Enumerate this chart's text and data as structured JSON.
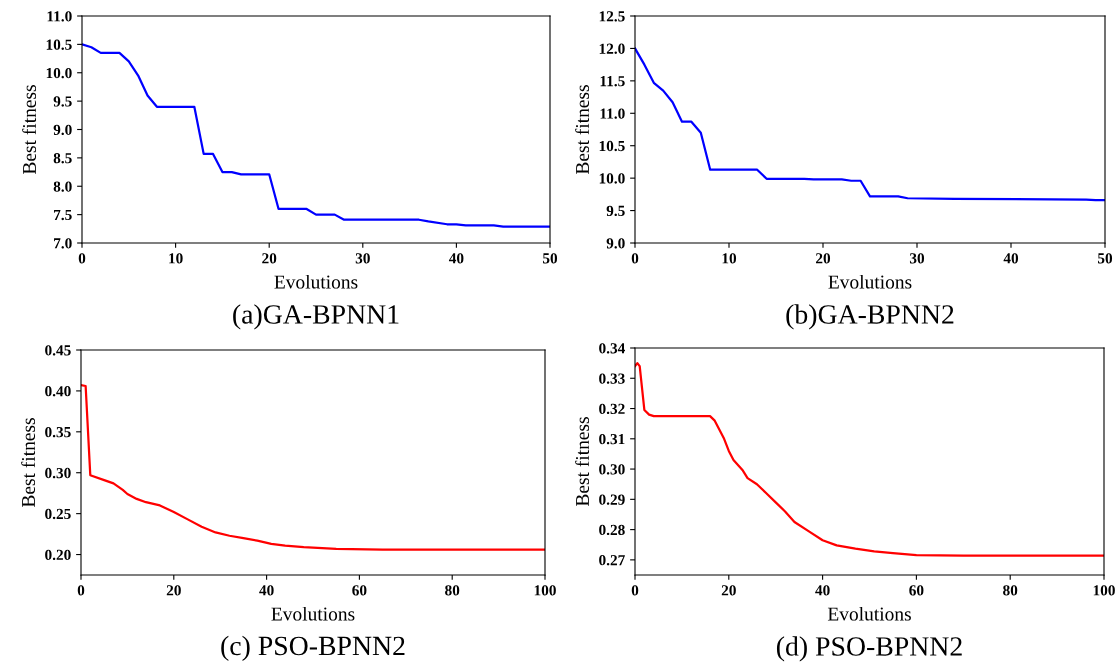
{
  "chart_data": [
    {
      "type": "line",
      "title": "(a)GA-BPNN1",
      "xlabel": "Evolutions",
      "ylabel": "Best fitness",
      "xlim": [
        0,
        50
      ],
      "xticks": [
        0,
        10,
        20,
        30,
        40,
        50
      ],
      "ylim": [
        7.0,
        11.0
      ],
      "yticks": [
        {
          "value": 7.0,
          "label": "7.0"
        },
        7.5,
        {
          "value": 8.0,
          "label": "8.0"
        },
        8.5,
        {
          "value": 9.0,
          "label": "9.0"
        },
        9.5,
        {
          "value": 10.0,
          "label": "10.0"
        },
        10.5,
        {
          "value": 11.0,
          "label": "11.0"
        }
      ],
      "series": [
        {
          "color": "#0000ff",
          "x": [
            0,
            1,
            2,
            4,
            5,
            6,
            7,
            8,
            12,
            13,
            14,
            15,
            16,
            17,
            20,
            21,
            24,
            25,
            27,
            28,
            36,
            37,
            39,
            40,
            41,
            44,
            45,
            50
          ],
          "values": [
            10.5,
            10.45,
            10.35,
            10.35,
            10.2,
            9.95,
            9.6,
            9.4,
            9.4,
            8.57,
            8.57,
            8.25,
            8.25,
            8.21,
            8.21,
            7.6,
            7.6,
            7.5,
            7.5,
            7.41,
            7.41,
            7.38,
            7.33,
            7.33,
            7.31,
            7.31,
            7.29,
            7.29
          ]
        }
      ]
    },
    {
      "type": "line",
      "title": "(b)GA-BPNN2",
      "xlabel": "Evolutions",
      "ylabel": "Best fitness",
      "xlim": [
        0,
        50
      ],
      "xticks": [
        0,
        10,
        20,
        30,
        40,
        50
      ],
      "ylim": [
        9.0,
        12.5
      ],
      "yticks": [
        {
          "value": 9.0,
          "label": "9.0"
        },
        9.5,
        {
          "value": 10.0,
          "label": "10.0"
        },
        10.5,
        {
          "value": 11.0,
          "label": "11.0"
        },
        11.5,
        {
          "value": 12.0,
          "label": "12.0"
        },
        12.5
      ],
      "series": [
        {
          "color": "#0000ff",
          "x": [
            0,
            1,
            2,
            3,
            4,
            5,
            6,
            7,
            8,
            13,
            14,
            18,
            19,
            22,
            23,
            24,
            25,
            28,
            29,
            34,
            48,
            49,
            50
          ],
          "values": [
            12.0,
            11.75,
            11.47,
            11.35,
            11.17,
            10.87,
            10.87,
            10.7,
            10.13,
            10.13,
            9.99,
            9.99,
            9.98,
            9.98,
            9.96,
            9.96,
            9.72,
            9.72,
            9.69,
            9.68,
            9.67,
            9.66,
            9.66
          ]
        }
      ]
    },
    {
      "type": "line",
      "title": "(c) PSO-BPNN2",
      "xlabel": "Evolutions",
      "ylabel": "Best fitness",
      "xlim": [
        0,
        100
      ],
      "xticks": [
        0,
        20,
        40,
        60,
        80,
        100
      ],
      "ylim": [
        0.175,
        0.45
      ],
      "yticks": [
        {
          "value": 0.2,
          "label": "0.20"
        },
        0.25,
        {
          "value": 0.3,
          "label": "0.30"
        },
        0.35,
        {
          "value": 0.4,
          "label": "0.40"
        },
        0.45
      ],
      "series": [
        {
          "color": "#ff0000",
          "x": [
            0,
            1,
            2,
            5,
            7,
            9,
            10,
            12,
            14,
            17,
            20,
            23,
            26,
            29,
            32,
            35,
            38,
            41,
            44,
            48,
            55,
            65,
            100
          ],
          "values": [
            0.407,
            0.406,
            0.297,
            0.291,
            0.287,
            0.279,
            0.274,
            0.268,
            0.264,
            0.26,
            0.252,
            0.243,
            0.234,
            0.227,
            0.223,
            0.22,
            0.217,
            0.213,
            0.211,
            0.209,
            0.207,
            0.206,
            0.206
          ]
        }
      ]
    },
    {
      "type": "line",
      "title": "(d) PSO-BPNN2",
      "xlabel": "Evolutions",
      "ylabel": "Best fitness",
      "xlim": [
        0,
        100
      ],
      "xticks": [
        0,
        20,
        40,
        60,
        80,
        100
      ],
      "ylim": [
        0.265,
        0.34
      ],
      "yticks": [
        0.27,
        0.28,
        0.29,
        {
          "value": 0.3,
          "label": "0.30"
        },
        0.31,
        0.32,
        0.33,
        0.34
      ],
      "series": [
        {
          "color": "#ff0000",
          "x": [
            0,
            0.5,
            1,
            2,
            3,
            4,
            16,
            17,
            18,
            19,
            20,
            21,
            23,
            24,
            26,
            28,
            30,
            32,
            34,
            37,
            40,
            43,
            47,
            51,
            55,
            60,
            70,
            100
          ],
          "values": [
            0.334,
            0.335,
            0.334,
            0.3195,
            0.318,
            0.3175,
            0.3175,
            0.316,
            0.313,
            0.31,
            0.306,
            0.303,
            0.2995,
            0.297,
            0.295,
            0.292,
            0.289,
            0.286,
            0.2825,
            0.2795,
            0.2765,
            0.2748,
            0.2737,
            0.2728,
            0.2722,
            0.2716,
            0.2714,
            0.2714
          ]
        }
      ]
    }
  ]
}
